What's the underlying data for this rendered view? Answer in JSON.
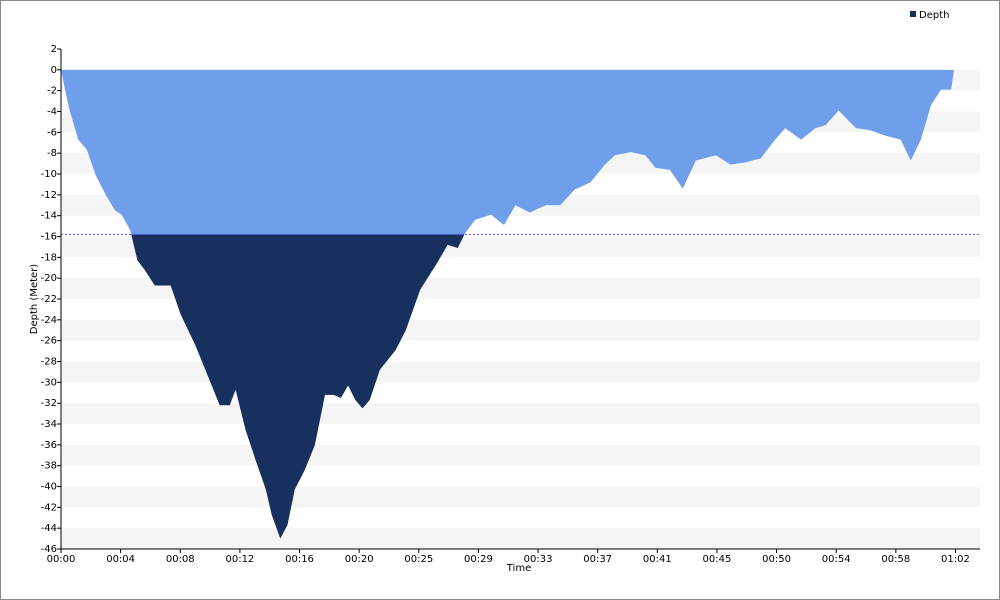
{
  "chart_data": {
    "type": "area",
    "xlabel": "Time",
    "ylabel": "Depth (Meter)",
    "x": [
      0,
      0.28,
      0.6,
      1.2,
      1.8,
      2.4,
      3.1,
      3.75,
      4.2,
      4.8,
      5.3,
      5.8,
      6.5,
      7.6,
      8.3,
      9.3,
      10.3,
      11.0,
      11.7,
      12.1,
      12.8,
      13.5,
      14.2,
      14.6,
      15.2,
      15.7,
      16.2,
      16.9,
      17.6,
      18.3,
      18.9,
      19.4,
      19.9,
      20.4,
      20.9,
      21.4,
      22.1,
      23.2,
      23.9,
      24.9,
      26,
      26.8,
      27.5,
      28,
      28.7,
      29.8,
      30.7,
      31.5,
      32.5,
      33.6,
      34.6,
      35.6,
      36.7,
      37.7,
      38.4,
      39.5,
      40.5,
      41.2,
      42.2,
      43.1,
      44,
      45.4,
      46.4,
      47.4,
      48.5,
      49.5,
      50.2,
      51.3,
      52.3,
      53,
      53.9,
      55.1,
      56.1,
      57.1,
      58.2,
      58.9,
      59.6,
      60.3,
      61,
      61.7,
      61.9
    ],
    "series": [
      {
        "name": "Depth",
        "color": "#17305e",
        "upper_color": "#6f9fea",
        "values": [
          0,
          -1.9,
          -3.9,
          -6.7,
          -7.7,
          -10.1,
          -12,
          -13.5,
          -13.9,
          -15.4,
          -18.3,
          -19.2,
          -20.7,
          -20.7,
          -23.5,
          -26.4,
          -29.8,
          -32.2,
          -32.2,
          -30.7,
          -34.6,
          -37.5,
          -40.3,
          -42.7,
          -45,
          -43.7,
          -40.3,
          -38.4,
          -36,
          -31.2,
          -31.2,
          -31.5,
          -30.3,
          -31.7,
          -32.5,
          -31.7,
          -28.8,
          -26.9,
          -25,
          -21.1,
          -18.7,
          -16.8,
          -17.1,
          -15.7,
          -14.4,
          -13.9,
          -14.9,
          -13,
          -13.7,
          -13,
          -13,
          -11.5,
          -10.8,
          -9.1,
          -8.2,
          -7.9,
          -8.2,
          -9.4,
          -9.6,
          -11.4,
          -8.7,
          -8.2,
          -9.1,
          -8.9,
          -8.5,
          -6.7,
          -5.6,
          -6.7,
          -5.6,
          -5.3,
          -3.9,
          -5.6,
          -5.8,
          -6.3,
          -6.7,
          -8.7,
          -6.7,
          -3.4,
          -1.9,
          -1.9,
          0
        ]
      }
    ],
    "reference_line": {
      "value": -15.8,
      "color": "#5b5bf0"
    },
    "xlim": [
      0,
      63.7
    ],
    "xticks": [
      {
        "value": 0,
        "label": "00:00"
      },
      {
        "value": 4.133,
        "label": "00:04"
      },
      {
        "value": 8.267,
        "label": "00:08"
      },
      {
        "value": 12.4,
        "label": "00:12"
      },
      {
        "value": 16.533,
        "label": "00:16"
      },
      {
        "value": 20.667,
        "label": "00:20"
      },
      {
        "value": 24.8,
        "label": "00:25"
      },
      {
        "value": 28.933,
        "label": "00:29"
      },
      {
        "value": 33.067,
        "label": "00:33"
      },
      {
        "value": 37.2,
        "label": "00:37"
      },
      {
        "value": 41.333,
        "label": "00:41"
      },
      {
        "value": 45.467,
        "label": "00:45"
      },
      {
        "value": 49.6,
        "label": "00:50"
      },
      {
        "value": 53.733,
        "label": "00:54"
      },
      {
        "value": 57.867,
        "label": "00:58"
      },
      {
        "value": 62,
        "label": "01:02"
      }
    ],
    "ylim": [
      -46,
      2
    ],
    "yticks": [
      2,
      0,
      -2,
      -4,
      -6,
      -8,
      -10,
      -12,
      -14,
      -16,
      -18,
      -20,
      -22,
      -24,
      -26,
      -28,
      -30,
      -32,
      -34,
      -36,
      -38,
      -40,
      -42,
      -44,
      -46
    ],
    "grid": "stripes",
    "legend": "top-right"
  }
}
